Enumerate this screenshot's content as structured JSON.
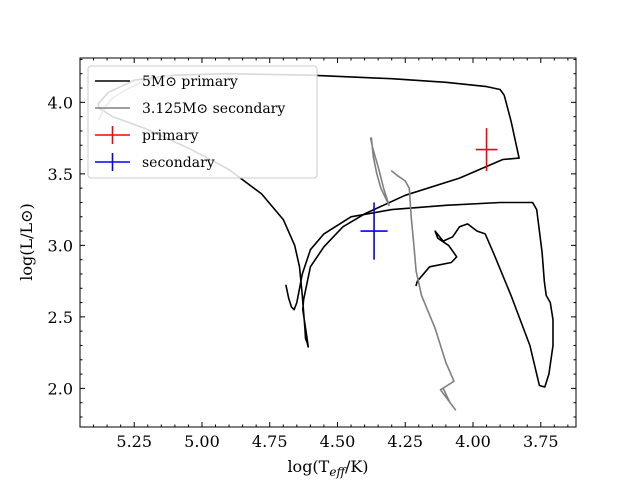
{
  "chart_data": {
    "type": "line",
    "xlabel": "log(T_eff/K)",
    "xlabel_parts": {
      "pre": "log(T",
      "sub": "eff",
      "post": "/K)"
    },
    "ylabel": "log(L/L⊙)",
    "xlim": [
      5.45,
      3.62
    ],
    "ylim": [
      1.73,
      4.31
    ],
    "x_inverted": true,
    "x_ticks": [
      5.25,
      5.0,
      4.75,
      4.5,
      4.25,
      4.0,
      3.75
    ],
    "x_tick_labels": [
      "5.25",
      "5.00",
      "4.75",
      "4.50",
      "4.25",
      "4.00",
      "3.75"
    ],
    "y_ticks": [
      2.0,
      2.5,
      3.0,
      3.5,
      4.0
    ],
    "y_tick_labels": [
      "2.0",
      "2.5",
      "3.0",
      "3.5",
      "4.0"
    ],
    "grid": false,
    "legend_position": "top-left",
    "legend": [
      {
        "key": "primary_track",
        "text": "5M⊙ primary",
        "kind": "line",
        "color": "#000000"
      },
      {
        "key": "secondary_track",
        "text": "3.125M⊙ secondary",
        "kind": "line",
        "color": "#808080"
      },
      {
        "key": "primary_point",
        "text": "primary",
        "kind": "errorbar",
        "color": "#ff0000"
      },
      {
        "key": "secondary_point",
        "text": "secondary",
        "kind": "errorbar",
        "color": "#0000ff"
      }
    ],
    "series": [
      {
        "key": "primary_track",
        "color": "#000000",
        "points": [
          [
            4.608,
            2.29
          ],
          [
            4.612,
            2.32
          ],
          [
            4.618,
            2.35
          ],
          [
            4.62,
            2.41
          ],
          [
            4.63,
            2.65
          ],
          [
            4.64,
            2.85
          ],
          [
            4.658,
            3.0
          ],
          [
            4.7,
            3.18
          ],
          [
            4.78,
            3.36
          ],
          [
            4.9,
            3.53
          ],
          [
            5.05,
            3.68
          ],
          [
            5.2,
            3.81
          ],
          [
            5.33,
            3.9
          ],
          [
            5.38,
            3.96
          ],
          [
            5.383,
            3.99
          ],
          [
            5.345,
            4.07
          ],
          [
            5.25,
            4.155
          ],
          [
            5.1,
            4.19
          ],
          [
            4.9,
            4.2
          ],
          [
            4.6,
            4.19
          ],
          [
            4.3,
            4.165
          ],
          [
            4.1,
            4.14
          ],
          [
            3.95,
            4.11
          ],
          [
            3.9,
            4.09
          ],
          [
            3.885,
            4.05
          ],
          [
            3.86,
            3.87
          ],
          [
            3.83,
            3.61
          ],
          [
            3.89,
            3.6
          ],
          [
            4.05,
            3.47
          ],
          [
            4.25,
            3.35
          ],
          [
            4.4,
            3.22
          ],
          [
            4.48,
            3.13
          ],
          [
            4.55,
            2.99
          ],
          [
            4.6,
            2.85
          ],
          [
            4.625,
            2.62
          ],
          [
            4.628,
            2.55
          ],
          [
            4.61,
            2.32
          ],
          [
            4.608,
            2.29
          ]
        ]
      },
      {
        "key": "primary_track_b",
        "color": "#000000",
        "points": [
          [
            4.69,
            2.72
          ],
          [
            4.68,
            2.63
          ],
          [
            4.67,
            2.57
          ],
          [
            4.66,
            2.55
          ],
          [
            4.65,
            2.6
          ],
          [
            4.63,
            2.8
          ],
          [
            4.6,
            2.97
          ],
          [
            4.55,
            3.08
          ],
          [
            4.45,
            3.2
          ],
          [
            4.3,
            3.25
          ],
          [
            4.1,
            3.28
          ],
          [
            3.9,
            3.3
          ],
          [
            3.78,
            3.3
          ],
          [
            3.765,
            3.25
          ],
          [
            3.745,
            2.95
          ],
          [
            3.737,
            2.75
          ],
          [
            3.73,
            2.65
          ],
          [
            3.715,
            2.6
          ],
          [
            3.705,
            2.48
          ],
          [
            3.705,
            2.3
          ],
          [
            3.72,
            2.1
          ],
          [
            3.735,
            2.01
          ],
          [
            3.755,
            2.02
          ],
          [
            3.79,
            2.3
          ],
          [
            3.86,
            2.65
          ],
          [
            3.925,
            2.95
          ],
          [
            3.955,
            3.08
          ],
          [
            3.985,
            3.1
          ],
          [
            4.02,
            3.15
          ],
          [
            4.05,
            3.13
          ],
          [
            4.075,
            3.06
          ],
          [
            4.11,
            3.03
          ],
          [
            4.14,
            3.1
          ],
          [
            4.13,
            3.05
          ],
          [
            4.09,
            3.0
          ],
          [
            4.06,
            2.92
          ],
          [
            4.08,
            2.88
          ],
          [
            4.16,
            2.85
          ],
          [
            4.205,
            2.75
          ],
          [
            4.21,
            2.72
          ]
        ]
      },
      {
        "key": "secondary_track",
        "color": "#808080",
        "points": [
          [
            4.375,
            3.75
          ],
          [
            4.368,
            3.62
          ],
          [
            4.355,
            3.5
          ],
          [
            4.34,
            3.4
          ],
          [
            4.31,
            3.28
          ],
          [
            4.33,
            3.4
          ],
          [
            4.35,
            3.55
          ],
          [
            4.37,
            3.68
          ],
          [
            4.378,
            3.75
          ],
          [
            4.375,
            3.74
          ]
        ]
      },
      {
        "key": "secondary_track_b",
        "color": "#808080",
        "points": [
          [
            4.3,
            3.52
          ],
          [
            4.28,
            3.49
          ],
          [
            4.25,
            3.45
          ],
          [
            4.235,
            3.4
          ],
          [
            4.228,
            3.2
          ],
          [
            4.218,
            3.0
          ],
          [
            4.21,
            2.82
          ],
          [
            4.19,
            2.65
          ],
          [
            4.14,
            2.42
          ],
          [
            4.1,
            2.18
          ],
          [
            4.07,
            2.05
          ],
          [
            4.095,
            2.02
          ],
          [
            4.12,
            1.99
          ],
          [
            4.065,
            1.85
          ],
          [
            4.085,
            1.9
          ],
          [
            4.11,
            2.0
          ]
        ]
      },
      {
        "key": "secondary_track_c",
        "color": "#808080",
        "points": [
          [
            5.38,
            3.88
          ],
          [
            5.36,
            3.96
          ],
          [
            5.33,
            4.03
          ],
          [
            5.28,
            4.09
          ],
          [
            5.21,
            4.15
          ],
          [
            5.12,
            4.185
          ]
        ]
      }
    ],
    "points": [
      {
        "key": "primary_point",
        "x": 3.95,
        "y": 3.67,
        "x_err": 0.04,
        "y_err": 0.15,
        "color": "#ff0000"
      },
      {
        "key": "secondary_point",
        "x": 4.365,
        "y": 3.1,
        "x_err": 0.05,
        "y_err": 0.2,
        "color": "#0000ff"
      }
    ]
  }
}
